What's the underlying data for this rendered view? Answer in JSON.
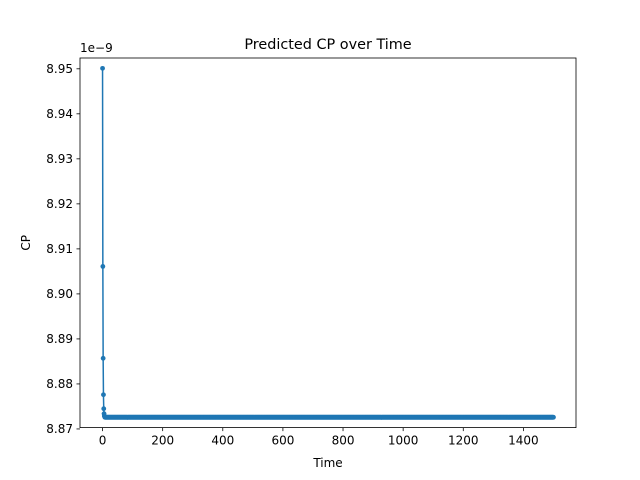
{
  "chart_data": {
    "type": "line",
    "title": "Predicted CP over Time",
    "xlabel": "Time",
    "ylabel": "CP",
    "y_offset_label": "1e−9",
    "xlim": [
      -75,
      1575
    ],
    "ylim": [
      8.8703,
      8.9524
    ],
    "x_ticks": [
      0,
      200,
      400,
      600,
      800,
      1000,
      1200,
      1400
    ],
    "x_tick_labels": [
      "0",
      "200",
      "400",
      "600",
      "800",
      "1000",
      "1200",
      "1400"
    ],
    "y_ticks": [
      8.87,
      8.88,
      8.89,
      8.9,
      8.91,
      8.92,
      8.93,
      8.94,
      8.95
    ],
    "y_tick_labels": [
      "8.87",
      "8.88",
      "8.89",
      "8.90",
      "8.91",
      "8.92",
      "8.93",
      "8.94",
      "8.95"
    ],
    "grid": false,
    "legend": "none",
    "series": [
      {
        "color": "#1f77b4",
        "marker": "circle",
        "x_start": 0,
        "x_end": 1500,
        "x_step": 1,
        "initial_values": [
          8.9501,
          8.9061,
          8.8857,
          8.8776,
          8.8745,
          8.8734,
          8.8729,
          8.8727,
          8.8726
        ],
        "steady_value": 8.8726
      }
    ]
  }
}
